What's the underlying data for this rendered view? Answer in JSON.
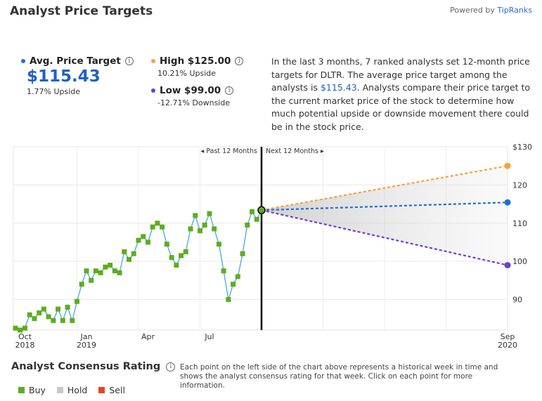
{
  "header": {
    "title": "Analyst Price Targets",
    "powered_prefix": "Powered by",
    "powered_brand": "TipRanks"
  },
  "stats": {
    "average": {
      "label": "Avg. Price Target",
      "value": "$115.43",
      "sub": "1.77% Upside",
      "color": "#1f6fd6"
    },
    "high": {
      "label": "High $125.00",
      "sub": "10.21% Upside",
      "color": "#f5a340"
    },
    "low": {
      "label": "Low $99.00",
      "sub": "-12.71% Downside",
      "color": "#6a3fd3"
    }
  },
  "description": {
    "before": "In the last 3 months, 7 ranked analysts set 12-month price targets for DLTR. The average price target among the analysts is ",
    "link": "$115.43",
    "after": ". Analysts compare their price target to the current market price of the stock to determine how much potential upside or downside movement there could be in the stock price."
  },
  "chart_data": {
    "type": "line",
    "title": "",
    "past_label": "Past 12 Months",
    "next_label": "Next 12 Months",
    "ylim": [
      82,
      130
    ],
    "y_ticks": [
      "$130",
      "120",
      "110",
      "100",
      "90"
    ],
    "y_tick_values": [
      130,
      120,
      110,
      100,
      90
    ],
    "x_ticks": [
      {
        "label": "Oct",
        "sub": "2018",
        "week": 2
      },
      {
        "label": "Jan",
        "sub": "2019",
        "week": 15
      },
      {
        "label": "Apr",
        "sub": "",
        "week": 28
      },
      {
        "label": "Jul",
        "sub": "",
        "week": 41
      },
      {
        "label": "Sep",
        "sub": "2020",
        "week": 104
      }
    ],
    "history": {
      "name": "Stock price",
      "color": "#5aa9e6",
      "point_color": "#5cae1c",
      "values": [
        82.5,
        82,
        82.5,
        86,
        85,
        86.5,
        87.5,
        85.5,
        84.5,
        87.5,
        84.5,
        88,
        84.5,
        89.5,
        94,
        97.5,
        95,
        97.5,
        97,
        98.5,
        99,
        97.5,
        97,
        102.5,
        100.5,
        102,
        105.5,
        106.5,
        105,
        109,
        110,
        109,
        104.5,
        101,
        99,
        101.5,
        102.5,
        108.5,
        112,
        108,
        109.5,
        112.5,
        108.5,
        104.5,
        97.5,
        90,
        94,
        96,
        102,
        109.5,
        113,
        111,
        113.4
      ]
    },
    "forecast": [
      {
        "name": "High",
        "from": 113.4,
        "to": 125,
        "color": "#f5a340"
      },
      {
        "name": "Average",
        "from": 113.4,
        "to": 115.43,
        "color": "#1f6fd6"
      },
      {
        "name": "Low",
        "from": 113.4,
        "to": 99,
        "color": "#6a3fd3"
      }
    ],
    "forecast_weeks": 52,
    "grid": true
  },
  "consensus": {
    "title": "Analyst Consensus Rating",
    "note": "Each point on the left side of the chart above represents a historical week in time and shows the analyst consensus rating for that week. Click on each point for more information.",
    "legend": [
      {
        "label": "Buy",
        "color": "#5cae1c"
      },
      {
        "label": "Hold",
        "color": "#c8c8c8"
      },
      {
        "label": "Sell",
        "color": "#e04a1f"
      }
    ]
  }
}
